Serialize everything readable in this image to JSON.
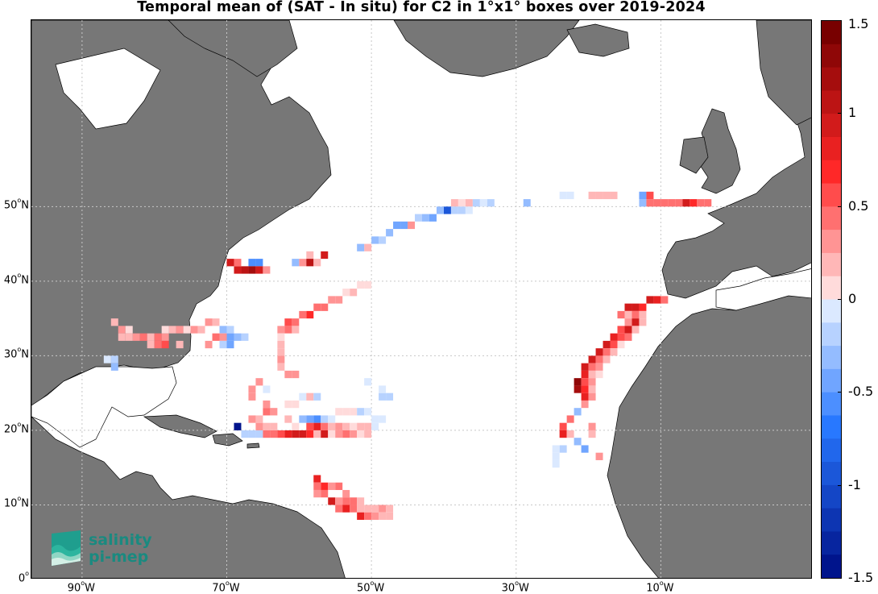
{
  "title": "Temporal mean of (SAT - In situ) for C2 in 1°x1° boxes over 2019-2024",
  "map": {
    "lon_range": [
      -97,
      11
    ],
    "lat_range": [
      0,
      75
    ],
    "grid_lines": true,
    "land_color": "#777777",
    "lat_ticks": [
      {
        "label": "50",
        "unit": "o",
        "hemi": "N",
        "lat": 50
      },
      {
        "label": "40",
        "unit": "o",
        "hemi": "N",
        "lat": 40
      },
      {
        "label": "30",
        "unit": "o",
        "hemi": "N",
        "lat": 30
      },
      {
        "label": "20",
        "unit": "o",
        "hemi": "N",
        "lat": 20
      },
      {
        "label": "10",
        "unit": "o",
        "hemi": "N",
        "lat": 10
      },
      {
        "label": "0",
        "unit": "o",
        "hemi": "",
        "lat": 0
      }
    ],
    "lon_ticks": [
      {
        "label": "90",
        "unit": "o",
        "hemi": "W",
        "lon": -90
      },
      {
        "label": "70",
        "unit": "o",
        "hemi": "W",
        "lon": -70
      },
      {
        "label": "50",
        "unit": "o",
        "hemi": "W",
        "lon": -50
      },
      {
        "label": "30",
        "unit": "o",
        "hemi": "W",
        "lon": -30
      },
      {
        "label": "10",
        "unit": "o",
        "hemi": "W",
        "lon": -10
      }
    ]
  },
  "colorbar": {
    "min": -1.5,
    "max": 1.5,
    "ticks": [
      "1.5",
      "1",
      "0.5",
      "0",
      "-0.5",
      "-1",
      "-1.5"
    ],
    "tick_values": [
      1.5,
      1,
      0.5,
      0,
      -0.5,
      -1,
      -1.5
    ],
    "colormap": "blue-white-red diverging"
  },
  "logo": {
    "line1": "salinity",
    "line2": "pi-mep"
  },
  "chart_data": {
    "type": "heatmap",
    "title": "Temporal mean of (SAT - In situ) for C2 in 1°x1° boxes over 2019-2024",
    "xlabel": "",
    "ylabel": "",
    "units_x": "degrees longitude",
    "units_y": "degrees latitude",
    "xlim": [
      -97,
      11
    ],
    "ylim": [
      0,
      75
    ],
    "clim": [
      -1.5,
      1.5
    ],
    "cells": [
      [
        -39,
        50,
        0.2
      ],
      [
        -38,
        50,
        0.1
      ],
      [
        -37,
        50,
        0.2
      ],
      [
        -36,
        50,
        -0.2
      ],
      [
        -35,
        50,
        -0.1
      ],
      [
        -34,
        50,
        -0.2
      ],
      [
        -29,
        50,
        -0.3
      ],
      [
        -24,
        51,
        -0.1
      ],
      [
        -23,
        51,
        -0.1
      ],
      [
        -20,
        51,
        0.2
      ],
      [
        -19,
        51,
        0.2
      ],
      [
        -18,
        51,
        0.2
      ],
      [
        -17,
        51,
        0.2
      ],
      [
        -13,
        51,
        -0.5
      ],
      [
        -12,
        51,
        0.6
      ],
      [
        -13,
        50,
        -0.3
      ],
      [
        -12,
        50,
        0.5
      ],
      [
        -11,
        50,
        0.5
      ],
      [
        -10,
        50,
        0.4
      ],
      [
        -9,
        50,
        0.4
      ],
      [
        -8,
        50,
        0.5
      ],
      [
        -7,
        50,
        0.9
      ],
      [
        -6,
        50,
        0.7
      ],
      [
        -5,
        50,
        0.5
      ],
      [
        -4,
        50,
        0.4
      ],
      [
        -40,
        49,
        -0.9
      ],
      [
        -39,
        49,
        -0.2
      ],
      [
        -38,
        49,
        -0.2
      ],
      [
        -37,
        49,
        -0.1
      ],
      [
        -41,
        49,
        -0.3
      ],
      [
        -42,
        48,
        -0.5
      ],
      [
        -43,
        48,
        -0.3
      ],
      [
        -44,
        48,
        -0.2
      ],
      [
        -45,
        47,
        0.3
      ],
      [
        -46,
        47,
        -0.4
      ],
      [
        -47,
        47,
        -0.4
      ],
      [
        -48,
        46,
        -0.3
      ],
      [
        -49,
        45,
        -0.2
      ],
      [
        -50,
        45,
        -0.3
      ],
      [
        -51,
        44,
        0.2
      ],
      [
        -52,
        44,
        -0.3
      ],
      [
        -57,
        43,
        0.9
      ],
      [
        -59,
        43,
        0.2
      ],
      [
        -60,
        42,
        0.3
      ],
      [
        -59,
        42,
        1.1
      ],
      [
        -58,
        42,
        0.2
      ],
      [
        -61,
        42,
        -0.3
      ],
      [
        -66,
        42,
        -0.6
      ],
      [
        -67,
        42,
        -0.6
      ],
      [
        -69,
        41,
        0.9
      ],
      [
        -68,
        41,
        1.1
      ],
      [
        -67,
        41,
        1.2
      ],
      [
        -66,
        41,
        0.9
      ],
      [
        -65,
        41,
        0.3
      ],
      [
        -70,
        42,
        0.9
      ],
      [
        -69,
        42,
        0.4
      ],
      [
        -51,
        39,
        0.1
      ],
      [
        -52,
        39,
        0.1
      ],
      [
        -53,
        38,
        0.2
      ],
      [
        -54,
        38,
        0.1
      ],
      [
        -55,
        37,
        0.3
      ],
      [
        -56,
        37,
        0.3
      ],
      [
        -57,
        36,
        0.5
      ],
      [
        -58,
        36,
        0.4
      ],
      [
        -59,
        35,
        0.7
      ],
      [
        -60,
        35,
        0.5
      ],
      [
        -61,
        34,
        0.5
      ],
      [
        -62,
        34,
        0.6
      ],
      [
        -63,
        33,
        0.3
      ],
      [
        -61,
        33,
        0.2
      ],
      [
        -62,
        33,
        0.4
      ],
      [
        -63,
        32,
        0.1
      ],
      [
        -86,
        34,
        0.2
      ],
      [
        -85,
        33,
        0.3
      ],
      [
        -84,
        33,
        0.1
      ],
      [
        -83,
        32,
        0.3
      ],
      [
        -82,
        32,
        0.4
      ],
      [
        -81,
        32,
        0.2
      ],
      [
        -80,
        32,
        0.4
      ],
      [
        -79,
        32,
        0.3
      ],
      [
        -78,
        33,
        0.2
      ],
      [
        -77,
        33,
        0.3
      ],
      [
        -76,
        33,
        0.1
      ],
      [
        -75,
        33,
        0.3
      ],
      [
        -74,
        33,
        0.2
      ],
      [
        -73,
        34,
        0.3
      ],
      [
        -72,
        34,
        0.2
      ],
      [
        -71,
        33,
        -0.3
      ],
      [
        -70,
        33,
        -0.2
      ],
      [
        -85,
        32,
        0.2
      ],
      [
        -84,
        32,
        0.2
      ],
      [
        -77,
        31,
        0.2
      ],
      [
        -81,
        31,
        0.2
      ],
      [
        -79,
        31,
        0.6
      ],
      [
        -80,
        31,
        0.5
      ],
      [
        -72,
        32,
        0.4
      ],
      [
        -71,
        32,
        0.3
      ],
      [
        -70,
        32,
        -0.4
      ],
      [
        -69,
        32,
        -0.3
      ],
      [
        -68,
        32,
        -0.2
      ],
      [
        -70,
        31,
        -0.4
      ],
      [
        -71,
        31,
        -0.2
      ],
      [
        -73,
        31,
        0.3
      ],
      [
        -79,
        33,
        0.1
      ],
      [
        -86,
        29,
        -0.2
      ],
      [
        -86,
        28,
        -0.3
      ],
      [
        -87,
        29,
        -0.1
      ],
      [
        -63,
        31,
        0.2
      ],
      [
        -63,
        30,
        0.2
      ],
      [
        -63,
        29,
        0.3
      ],
      [
        -63,
        28,
        0.2
      ],
      [
        -62,
        27,
        0.3
      ],
      [
        -61,
        27,
        0.3
      ],
      [
        -66,
        26,
        0.3
      ],
      [
        -67,
        25,
        0.3
      ],
      [
        -67,
        24,
        0.3
      ],
      [
        -65,
        25,
        -0.1
      ],
      [
        -65,
        23,
        0.3
      ],
      [
        -64,
        22,
        0.3
      ],
      [
        -65,
        22,
        0.4
      ],
      [
        -66,
        21,
        0.2
      ],
      [
        -67,
        21,
        0.3
      ],
      [
        -62,
        23,
        0.1
      ],
      [
        -61,
        23,
        0.1
      ],
      [
        -60,
        24,
        -0.1
      ],
      [
        -59,
        24,
        0.2
      ],
      [
        -58,
        24,
        -0.2
      ],
      [
        -62,
        21,
        0.2
      ],
      [
        -60,
        21,
        -0.3
      ],
      [
        -59,
        21,
        -0.5
      ],
      [
        -58,
        21,
        -0.6
      ],
      [
        -57,
        21,
        -0.2
      ],
      [
        -56,
        21,
        -0.1
      ],
      [
        -55,
        22,
        0.1
      ],
      [
        -54,
        22,
        0.1
      ],
      [
        -53,
        22,
        0.1
      ],
      [
        -52,
        22,
        -0.2
      ],
      [
        -51,
        22,
        -0.1
      ],
      [
        -49,
        24,
        -0.2
      ],
      [
        -48,
        24,
        -0.2
      ],
      [
        -49,
        25,
        -0.1
      ],
      [
        -51,
        26,
        -0.1
      ],
      [
        -50,
        21,
        -0.1
      ],
      [
        -49,
        21,
        -0.1
      ],
      [
        -61,
        20,
        0.1
      ],
      [
        -59,
        20,
        0.6
      ],
      [
        -58,
        20,
        0.8
      ],
      [
        -57,
        20,
        0.5
      ],
      [
        -56,
        20,
        0.2
      ],
      [
        -55,
        20,
        0.3
      ],
      [
        -54,
        20,
        0.2
      ],
      [
        -53,
        20,
        0.1
      ],
      [
        -52,
        20,
        0.2
      ],
      [
        -51,
        20,
        0.2
      ],
      [
        -50,
        20,
        -0.1
      ],
      [
        -69,
        20,
        -1.4
      ],
      [
        -68,
        19,
        -0.2
      ],
      [
        -67,
        19,
        -0.2
      ],
      [
        -66,
        19,
        -0.2
      ],
      [
        -65,
        20,
        0.2
      ],
      [
        -64,
        19,
        0.5
      ],
      [
        -63,
        19,
        0.6
      ],
      [
        -62,
        19,
        0.8
      ],
      [
        -61,
        19,
        0.9
      ],
      [
        -60,
        19,
        0.9
      ],
      [
        -59,
        19,
        0.7
      ],
      [
        -58,
        19,
        0.2
      ],
      [
        -57,
        19,
        0.9
      ],
      [
        -56,
        19,
        0.1
      ],
      [
        -55,
        19,
        0.3
      ],
      [
        -54,
        19,
        0.5
      ],
      [
        -53,
        19,
        0.3
      ],
      [
        -52,
        19,
        0.1
      ],
      [
        -51,
        19,
        0.2
      ],
      [
        -66,
        20,
        0.3
      ],
      [
        -65,
        19,
        0.4
      ],
      [
        -64,
        20,
        0.2
      ],
      [
        -12,
        37,
        0.9
      ],
      [
        -11,
        37,
        0.8
      ],
      [
        -10,
        37,
        0.4
      ],
      [
        -13,
        36,
        0.7
      ],
      [
        -14,
        36,
        0.9
      ],
      [
        -15,
        36,
        0.9
      ],
      [
        -16,
        35,
        0.5
      ],
      [
        -15,
        35,
        0.2
      ],
      [
        -14,
        35,
        0.5
      ],
      [
        -13,
        35,
        0.2
      ],
      [
        -14,
        34,
        0.9
      ],
      [
        -15,
        34,
        0.3
      ],
      [
        -13,
        34,
        0.2
      ],
      [
        -15,
        33,
        1
      ],
      [
        -16,
        33,
        0.6
      ],
      [
        -14,
        33,
        0.2
      ],
      [
        -17,
        32,
        0.8
      ],
      [
        -16,
        32,
        0.6
      ],
      [
        -15,
        32,
        0.4
      ],
      [
        -18,
        31,
        0.9
      ],
      [
        -17,
        31,
        0.6
      ],
      [
        -16,
        31,
        0.1
      ],
      [
        -19,
        30,
        0.9
      ],
      [
        -18,
        30,
        0.4
      ],
      [
        -17,
        30,
        0.2
      ],
      [
        -20,
        29,
        0.9
      ],
      [
        -19,
        29,
        0.5
      ],
      [
        -18,
        29,
        0.2
      ],
      [
        -21,
        28,
        0.9
      ],
      [
        -20,
        28,
        0.4
      ],
      [
        -19,
        28,
        0.3
      ],
      [
        -21,
        27,
        0.8
      ],
      [
        -20,
        27,
        0.2
      ],
      [
        -19,
        27,
        0.1
      ],
      [
        -22,
        26,
        1.3
      ],
      [
        -21,
        26,
        0.6
      ],
      [
        -20,
        26,
        0.3
      ],
      [
        -22,
        25,
        1.2
      ],
      [
        -21,
        25,
        0.7
      ],
      [
        -20,
        25,
        0.2
      ],
      [
        -21,
        24,
        0.8
      ],
      [
        -20,
        24,
        0.3
      ],
      [
        -21,
        23,
        0.3
      ],
      [
        -22,
        22,
        -0.3
      ],
      [
        -23,
        21,
        0.4
      ],
      [
        -24,
        20,
        0.6
      ],
      [
        -24,
        19,
        0.8
      ],
      [
        -23,
        19,
        0.2
      ],
      [
        -20,
        20,
        0.3
      ],
      [
        -20,
        19,
        0.2
      ],
      [
        -22,
        18,
        -0.3
      ],
      [
        -21,
        17,
        -0.5
      ],
      [
        -24,
        17,
        -0.2
      ],
      [
        -25,
        17,
        -0.1
      ],
      [
        -25,
        16,
        -0.1
      ],
      [
        -25,
        15,
        -0.1
      ],
      [
        -19,
        16,
        0.3
      ],
      [
        -58,
        13,
        0.8
      ],
      [
        -57,
        12,
        0.7
      ],
      [
        -58,
        12,
        0.5
      ],
      [
        -56,
        12,
        0.3
      ],
      [
        -55,
        12,
        0.4
      ],
      [
        -54,
        11,
        0.3
      ],
      [
        -58,
        11,
        0.3
      ],
      [
        -57,
        11,
        0.5
      ],
      [
        -56,
        10,
        0.9
      ],
      [
        -55,
        10,
        0.3
      ],
      [
        -54,
        10,
        0.4
      ],
      [
        -53,
        10,
        0.5
      ],
      [
        -52,
        10,
        0.2
      ],
      [
        -55,
        9,
        0.5
      ],
      [
        -54,
        9,
        0.8
      ],
      [
        -53,
        9,
        0.5
      ],
      [
        -52,
        9,
        0.2
      ],
      [
        -51,
        9,
        0.2
      ],
      [
        -50,
        9,
        0.2
      ],
      [
        -49,
        9,
        0.3
      ],
      [
        -48,
        9,
        0.2
      ],
      [
        -52,
        8,
        0.8
      ],
      [
        -51,
        8,
        0.5
      ],
      [
        -50,
        8,
        0.3
      ],
      [
        -49,
        8,
        0.2
      ],
      [
        -48,
        8,
        0.2
      ]
    ]
  }
}
